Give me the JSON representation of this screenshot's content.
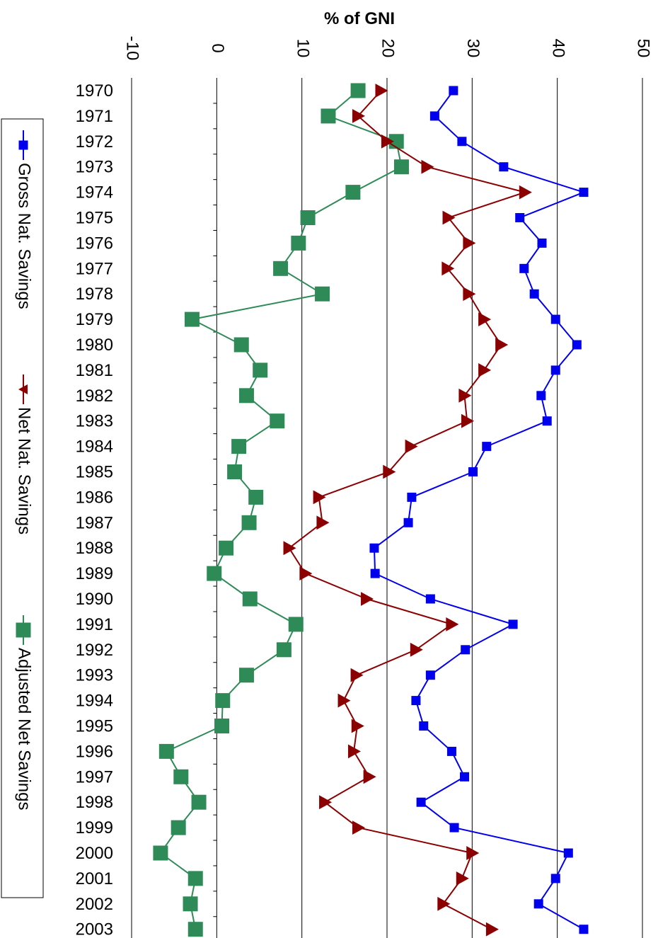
{
  "chart_data": {
    "type": "line",
    "title": "",
    "xlabel": "",
    "ylabel": "% of GNI",
    "ylim": [
      -10,
      50
    ],
    "yticks": [
      -10,
      0,
      10,
      20,
      30,
      40,
      50
    ],
    "grid": true,
    "legend_position": "left",
    "categories": [
      "1970",
      "1971",
      "1972",
      "1973",
      "1974",
      "1975",
      "1976",
      "1977",
      "1978",
      "1979",
      "1980",
      "1981",
      "1982",
      "1983",
      "1984",
      "1985",
      "1986",
      "1987",
      "1988",
      "1989",
      "1990",
      "1991",
      "1992",
      "1993",
      "1994",
      "1995",
      "1996",
      "1997",
      "1998",
      "1999",
      "2000",
      "2001",
      "2002",
      "2003"
    ],
    "series": [
      {
        "name": "Gross Nat. Savings",
        "color": "#0000ee",
        "marker": "square",
        "values": [
          27.8,
          25.6,
          28.8,
          33.7,
          43.1,
          35.6,
          38.2,
          36.1,
          37.3,
          39.8,
          42.3,
          39.8,
          38.1,
          38.8,
          31.7,
          30.1,
          22.9,
          22.5,
          18.5,
          18.6,
          25.1,
          34.8,
          29.2,
          25.1,
          23.4,
          24.3,
          27.6,
          29.1,
          24.0,
          27.9,
          41.3,
          39.8,
          37.8,
          43.1
        ]
      },
      {
        "name": "Net Nat. Savings",
        "color": "#8b0000",
        "marker": "triangle",
        "values": [
          19.3,
          16.6,
          20.0,
          24.7,
          36.2,
          27.2,
          29.6,
          27.1,
          29.6,
          31.4,
          33.4,
          31.4,
          29.1,
          29.4,
          22.8,
          20.2,
          12.0,
          12.4,
          8.5,
          10.4,
          17.6,
          27.6,
          23.4,
          16.4,
          14.9,
          16.5,
          16.1,
          17.9,
          12.7,
          16.6,
          30.0,
          28.8,
          26.6,
          32.3
        ]
      },
      {
        "name": "Adjusted Net Savings",
        "color": "#2e8b57",
        "marker": "square",
        "values": [
          16.6,
          13.1,
          21.1,
          21.7,
          16.0,
          10.7,
          9.6,
          7.5,
          12.4,
          -2.9,
          2.9,
          5.1,
          3.5,
          7.1,
          2.6,
          2.1,
          4.6,
          3.8,
          1.1,
          -0.3,
          3.9,
          9.3,
          7.9,
          3.5,
          0.7,
          0.6,
          -5.9,
          -4.2,
          -2.1,
          -4.5,
          -6.6,
          -2.5,
          -3.1,
          -2.5
        ]
      }
    ]
  }
}
